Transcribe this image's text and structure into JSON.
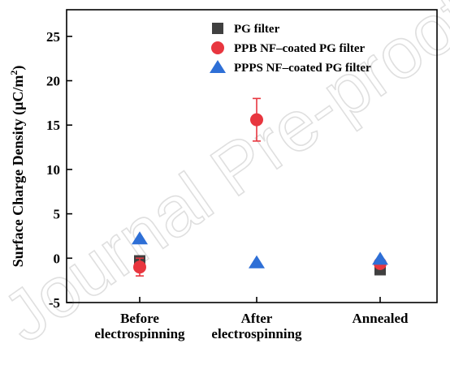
{
  "watermark": "Journal Pre-proof",
  "chart_data": {
    "type": "scatter",
    "title": "",
    "xlabel": "",
    "ylabel": "Surface Charge Density (μC/m²)",
    "ylabel_main": "Surface Charge Density (μC/m",
    "ylabel_sup": "2",
    "ylabel_close": ")",
    "ylim": [
      -5,
      28
    ],
    "yticks": [
      "-5",
      "0",
      "5",
      "10",
      "15",
      "20",
      "25"
    ],
    "ytick_values": [
      -5,
      0,
      5,
      10,
      15,
      20,
      25
    ],
    "categories": [
      [
        "Before",
        "electrospinning"
      ],
      [
        "After",
        "electrospinning"
      ],
      [
        "Annealed"
      ]
    ],
    "legend_position": "top-right",
    "grid": false,
    "series": [
      {
        "name": "PG filter",
        "marker": "square",
        "color": "#404040",
        "points": [
          {
            "category": 0,
            "y": -0.3,
            "err": 0
          },
          {
            "category": 2,
            "y": -1.3,
            "err": 0
          }
        ]
      },
      {
        "name": "PPB NF–coated PG filter",
        "marker": "circle",
        "color": "#e8363f",
        "points": [
          {
            "category": 0,
            "y": -1.0,
            "err": 1.0
          },
          {
            "category": 1,
            "y": 15.6,
            "err": 2.4
          },
          {
            "category": 2,
            "y": -0.6,
            "err": 0
          }
        ]
      },
      {
        "name": "PPPS NF–coated PG filter",
        "marker": "triangle",
        "color": "#2e6fd6",
        "points": [
          {
            "category": 0,
            "y": 2.2,
            "err": 0
          },
          {
            "category": 1,
            "y": -0.5,
            "err": 0
          },
          {
            "category": 2,
            "y": -0.1,
            "err": 0
          }
        ]
      }
    ]
  }
}
